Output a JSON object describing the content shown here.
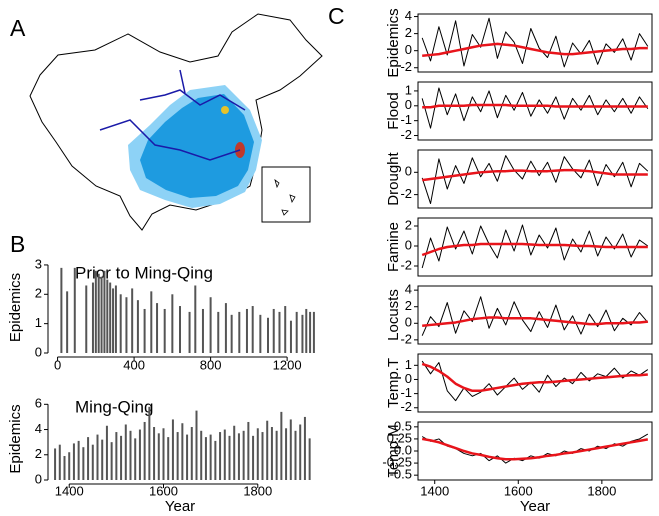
{
  "panels": [
    "A",
    "B",
    "C"
  ],
  "chart_data": [
    {
      "type": "bar",
      "title": "Prior to Ming-Qing",
      "y_label": "Epidemics",
      "color": "#555555",
      "x": [
        20,
        50,
        90,
        150,
        185,
        200,
        215,
        230,
        245,
        260,
        275,
        290,
        305,
        330,
        360,
        390,
        420,
        455,
        490,
        520,
        560,
        600,
        640,
        690,
        720,
        760,
        800,
        840,
        880,
        910,
        950,
        990,
        1020,
        1060,
        1100,
        1130,
        1160,
        1190,
        1220,
        1250,
        1280,
        1300,
        1320,
        1340
      ],
      "values": [
        2.9,
        2.1,
        2.9,
        2.3,
        2.4,
        2.8,
        2.7,
        2.6,
        2.8,
        2.5,
        2.4,
        2.2,
        2.3,
        2.0,
        1.9,
        2.2,
        1.8,
        1.5,
        2.1,
        1.7,
        1.5,
        2.0,
        1.6,
        1.4,
        2.3,
        1.5,
        1.9,
        1.4,
        1.7,
        1.3,
        1.4,
        1.5,
        1.6,
        1.3,
        1.2,
        1.5,
        1.4,
        1.6,
        1.1,
        1.4,
        1.3,
        1.5,
        1.4,
        1.4
      ],
      "xlim": [
        -50,
        1330
      ],
      "xticks": [
        0,
        400,
        800,
        1200
      ],
      "ylim": [
        0,
        3.1
      ],
      "yticks": [
        0,
        1,
        2,
        3
      ]
    },
    {
      "type": "bar",
      "title": "Ming-Qing",
      "y_label": "Epidemics",
      "x_label": "Year",
      "color": "#555555",
      "x": [
        1370,
        1380,
        1390,
        1400,
        1410,
        1420,
        1430,
        1440,
        1450,
        1460,
        1470,
        1480,
        1490,
        1500,
        1510,
        1520,
        1530,
        1540,
        1550,
        1560,
        1570,
        1580,
        1590,
        1600,
        1610,
        1620,
        1630,
        1640,
        1650,
        1660,
        1670,
        1680,
        1690,
        1700,
        1710,
        1720,
        1730,
        1740,
        1750,
        1760,
        1770,
        1780,
        1790,
        1800,
        1810,
        1820,
        1830,
        1840,
        1850,
        1860,
        1870,
        1880,
        1890,
        1900,
        1910
      ],
      "values": [
        2.5,
        2.8,
        1.9,
        2.2,
        2.9,
        3.1,
        2.6,
        3.4,
        2.8,
        3.6,
        3.2,
        4.3,
        3.0,
        3.8,
        3.5,
        4.4,
        3.9,
        3.3,
        4.0,
        4.6,
        5.8,
        4.2,
        3.7,
        4.1,
        3.4,
        4.8,
        3.8,
        4.5,
        3.6,
        4.2,
        5.5,
        3.9,
        3.4,
        3.6,
        3.1,
        3.8,
        4.0,
        3.5,
        4.3,
        3.7,
        3.9,
        4.6,
        3.5,
        4.1,
        3.8,
        4.7,
        4.2,
        3.9,
        5.4,
        4.1,
        4.8,
        3.9,
        4.4,
        5.0,
        3.3
      ],
      "xlim": [
        1355,
        1915
      ],
      "xticks": [
        1400,
        1600,
        1800
      ],
      "ylim": [
        0,
        6.5
      ],
      "yticks": [
        0,
        2,
        4,
        6
      ]
    },
    {
      "type": "line",
      "y_label": "Epidemics",
      "x": [
        1370,
        1390,
        1410,
        1430,
        1450,
        1470,
        1490,
        1510,
        1530,
        1550,
        1570,
        1590,
        1610,
        1630,
        1650,
        1670,
        1690,
        1710,
        1730,
        1750,
        1770,
        1790,
        1810,
        1830,
        1850,
        1870,
        1890,
        1910
      ],
      "series": [
        {
          "color": "#000000",
          "values": [
            1.5,
            -1.2,
            2.8,
            -0.5,
            3.5,
            -1.8,
            1.9,
            0.4,
            3.8,
            -0.9,
            2.2,
            1.0,
            -1.5,
            2.6,
            0.3,
            -0.8,
            1.7,
            -1.9,
            0.9,
            -0.4,
            1.2,
            -1.6,
            0.8,
            -0.2,
            1.4,
            -1.1,
            2.0,
            0.5
          ]
        },
        {
          "color": "#e8141b",
          "values": [
            -0.6,
            -0.5,
            -0.4,
            -0.2,
            0,
            0.2,
            0.4,
            0.6,
            0.7,
            0.8,
            0.7,
            0.6,
            0.4,
            0.2,
            0,
            -0.2,
            -0.3,
            -0.4,
            -0.4,
            -0.3,
            -0.2,
            -0.1,
            0,
            0.1,
            0.2,
            0.2,
            0.3,
            0.3
          ]
        }
      ],
      "xlim": [
        1360,
        1920
      ],
      "ylim": [
        -2.5,
        4.3
      ],
      "yticks": [
        -2,
        0,
        2,
        4
      ]
    },
    {
      "type": "line",
      "y_label": "Flood",
      "x": [
        1370,
        1390,
        1410,
        1430,
        1450,
        1470,
        1490,
        1510,
        1530,
        1550,
        1570,
        1590,
        1610,
        1630,
        1650,
        1670,
        1690,
        1710,
        1730,
        1750,
        1770,
        1790,
        1810,
        1830,
        1850,
        1870,
        1890,
        1910
      ],
      "series": [
        {
          "color": "#000000",
          "values": [
            0.5,
            -1.5,
            1.2,
            -0.6,
            0.8,
            -1.0,
            0.6,
            -0.4,
            1.0,
            -0.8,
            0.7,
            -0.3,
            0.9,
            -0.7,
            0.4,
            -0.5,
            0.6,
            -0.9,
            0.5,
            -0.3,
            0.7,
            -0.6,
            0.4,
            -0.4,
            0.5,
            -0.5,
            0.6,
            -0.2
          ]
        },
        {
          "color": "#e8141b",
          "values": [
            -0.1,
            -0.1,
            0,
            0,
            0,
            0,
            0.05,
            0.05,
            0.05,
            0.05,
            0.05,
            0,
            0,
            0,
            0,
            0,
            -0.05,
            -0.05,
            -0.05,
            -0.05,
            -0.05,
            -0.05,
            -0.05,
            -0.05,
            -0.05,
            -0.05,
            -0.05,
            -0.05
          ]
        }
      ],
      "xlim": [
        1360,
        1920
      ],
      "ylim": [
        -2.3,
        1.6
      ],
      "yticks": [
        -2,
        -1,
        0,
        1
      ]
    },
    {
      "type": "line",
      "y_label": "Drought",
      "x": [
        1370,
        1390,
        1410,
        1430,
        1450,
        1470,
        1490,
        1510,
        1530,
        1550,
        1570,
        1590,
        1610,
        1630,
        1650,
        1670,
        1690,
        1710,
        1730,
        1750,
        1770,
        1790,
        1810,
        1830,
        1850,
        1870,
        1890,
        1910
      ],
      "series": [
        {
          "color": "#000000",
          "values": [
            -0.5,
            -2.8,
            1.2,
            -1.5,
            0.6,
            -1.0,
            1.3,
            -0.4,
            0.8,
            -0.8,
            1.5,
            0.2,
            -0.6,
            1.0,
            -0.3,
            0.9,
            -0.9,
            1.4,
            0.3,
            -0.5,
            1.1,
            -1.2,
            0.7,
            -0.4,
            0.9,
            -1.3,
            0.8,
            0.1
          ]
        },
        {
          "color": "#e8141b",
          "values": [
            -0.7,
            -0.6,
            -0.5,
            -0.4,
            -0.3,
            -0.2,
            -0.1,
            0,
            0.05,
            0.1,
            0.1,
            0.15,
            0.15,
            0.1,
            0.1,
            0.1,
            0.15,
            0.2,
            0.2,
            0.15,
            0.1,
            0,
            -0.1,
            -0.2,
            -0.2,
            -0.2,
            -0.2,
            -0.2
          ]
        }
      ],
      "xlim": [
        1360,
        1920
      ],
      "ylim": [
        -3.2,
        2
      ],
      "yticks": [
        -2,
        0
      ]
    },
    {
      "type": "line",
      "y_label": "Famine",
      "x": [
        1370,
        1390,
        1410,
        1430,
        1450,
        1470,
        1490,
        1510,
        1530,
        1550,
        1570,
        1590,
        1610,
        1630,
        1650,
        1670,
        1690,
        1710,
        1730,
        1750,
        1770,
        1790,
        1810,
        1830,
        1850,
        1870,
        1890,
        1910
      ],
      "series": [
        {
          "color": "#000000",
          "values": [
            -2.2,
            0.8,
            -1.5,
            1.9,
            -0.3,
            1.5,
            -0.8,
            2.0,
            0.2,
            -1.2,
            1.6,
            -0.5,
            2.1,
            -0.9,
            1.1,
            -0.2,
            1.8,
            -1.4,
            0.7,
            -0.6,
            1.5,
            -1.0,
            0.9,
            -0.3,
            1.2,
            -1.1,
            0.6,
            0.0
          ]
        },
        {
          "color": "#e8141b",
          "values": [
            -0.9,
            -0.6,
            -0.3,
            -0.1,
            0,
            0.1,
            0.1,
            0.2,
            0.2,
            0.2,
            0.2,
            0.2,
            0.2,
            0.15,
            0.1,
            0.1,
            0.1,
            0.1,
            0.05,
            0,
            0,
            -0.05,
            -0.1,
            -0.1,
            -0.1,
            -0.1,
            -0.1,
            -0.1
          ]
        }
      ],
      "xlim": [
        1360,
        1920
      ],
      "ylim": [
        -3,
        2.8
      ],
      "yticks": [
        -2,
        0,
        2
      ]
    },
    {
      "type": "line",
      "y_label": "Locusts",
      "x": [
        1370,
        1390,
        1410,
        1430,
        1450,
        1470,
        1490,
        1510,
        1530,
        1550,
        1570,
        1590,
        1610,
        1630,
        1650,
        1670,
        1690,
        1710,
        1730,
        1750,
        1770,
        1790,
        1810,
        1830,
        1850,
        1870,
        1890,
        1910
      ],
      "series": [
        {
          "color": "#000000",
          "values": [
            -1.5,
            0.8,
            -0.4,
            2.5,
            -1.2,
            1.5,
            0.2,
            3.2,
            -0.6,
            1.8,
            -0.2,
            2.6,
            0.4,
            -1.0,
            1.4,
            -0.5,
            2.2,
            -0.8,
            0.9,
            -1.3,
            1.1,
            -0.4,
            1.6,
            -0.9,
            0.6,
            -0.2,
            1.3,
            0.1
          ]
        },
        {
          "color": "#e8141b",
          "values": [
            -0.3,
            -0.2,
            -0.1,
            0,
            0.1,
            0.3,
            0.5,
            0.6,
            0.7,
            0.7,
            0.6,
            0.6,
            0.6,
            0.6,
            0.5,
            0.4,
            0.3,
            0.2,
            0.1,
            0,
            -0.1,
            -0.1,
            0,
            0,
            0,
            0.1,
            0.1,
            0.2
          ]
        }
      ],
      "xlim": [
        1360,
        1920
      ],
      "ylim": [
        -2.5,
        4.5
      ],
      "yticks": [
        -2,
        0,
        2,
        4
      ]
    },
    {
      "type": "line",
      "y_label": "Temp.T",
      "x": [
        1370,
        1390,
        1410,
        1430,
        1450,
        1470,
        1490,
        1510,
        1530,
        1550,
        1570,
        1590,
        1610,
        1630,
        1650,
        1670,
        1690,
        1710,
        1730,
        1750,
        1770,
        1790,
        1810,
        1830,
        1850,
        1870,
        1890,
        1910
      ],
      "series": [
        {
          "color": "#000000",
          "values": [
            1.3,
            0.4,
            1.2,
            -0.8,
            -1.5,
            -0.6,
            -1.2,
            -0.9,
            -0.3,
            -1.1,
            -0.5,
            0.1,
            -0.7,
            -0.2,
            -0.9,
            0.3,
            -0.5,
            0.1,
            -0.3,
            0.5,
            -0.1,
            0.4,
            0.2,
            0.8,
            0.1,
            0.6,
            0.3,
            0.7
          ]
        },
        {
          "color": "#e8141b",
          "values": [
            1.1,
            0.9,
            0.6,
            0.2,
            -0.3,
            -0.6,
            -0.8,
            -0.8,
            -0.7,
            -0.6,
            -0.5,
            -0.4,
            -0.3,
            -0.25,
            -0.2,
            -0.2,
            -0.15,
            -0.1,
            -0.05,
            0,
            0.05,
            0.1,
            0.15,
            0.2,
            0.25,
            0.3,
            0.3,
            0.35
          ]
        }
      ],
      "xlim": [
        1360,
        1920
      ],
      "ylim": [
        -2.3,
        1.8
      ],
      "yticks": [
        -2,
        -1,
        0,
        1
      ]
    },
    {
      "type": "line",
      "y_label": "Temp.M",
      "x_label": "Year",
      "x": [
        1370,
        1390,
        1410,
        1430,
        1450,
        1470,
        1490,
        1510,
        1530,
        1550,
        1570,
        1590,
        1610,
        1630,
        1650,
        1670,
        1690,
        1710,
        1730,
        1750,
        1770,
        1790,
        1810,
        1830,
        1850,
        1870,
        1890,
        1910
      ],
      "series": [
        {
          "color": "#000000",
          "values": [
            0.3,
            0.2,
            0.25,
            0.1,
            0.05,
            -0.05,
            -0.1,
            -0.05,
            -0.2,
            -0.1,
            -0.25,
            -0.15,
            -0.2,
            -0.1,
            -0.15,
            -0.05,
            -0.1,
            0.0,
            -0.05,
            0.05,
            0.0,
            0.1,
            0.05,
            0.15,
            0.1,
            0.2,
            0.25,
            0.35
          ]
        },
        {
          "color": "#e8141b",
          "values": [
            0.25,
            0.22,
            0.18,
            0.12,
            0.06,
            0,
            -0.05,
            -0.08,
            -0.12,
            -0.15,
            -0.17,
            -0.17,
            -0.16,
            -0.15,
            -0.13,
            -0.1,
            -0.08,
            -0.05,
            -0.03,
            0,
            0.03,
            0.06,
            0.09,
            0.12,
            0.15,
            0.18,
            0.21,
            0.24
          ]
        }
      ],
      "xlim": [
        1360,
        1920
      ],
      "xticks": [
        1400,
        1600,
        1800
      ],
      "ylim": [
        -0.6,
        0.6
      ],
      "yticks": [
        -0.5,
        -0.25,
        {
          "value": 0,
          "label": "0.0"
        },
        0.25,
        0.5
      ]
    }
  ]
}
